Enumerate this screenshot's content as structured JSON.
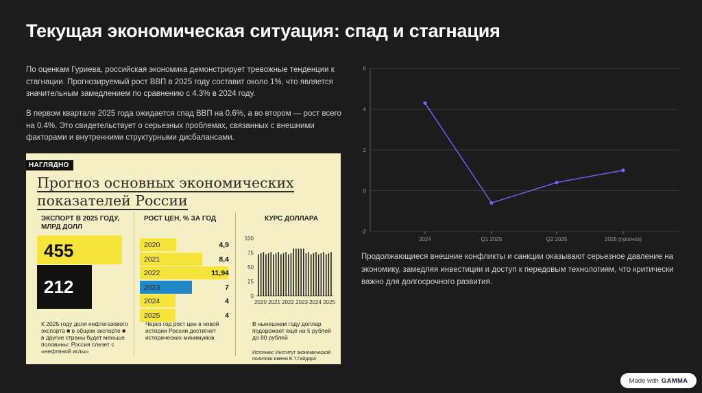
{
  "slide": {
    "title": "Текущая экономическая ситуация: спад и стагнация",
    "paragraph_1": "По оценкам Гуриева, российская экономика демонстрирует тревожные тенденции к стагнации. Прогнозируемый рост ВВП в 2025 году составит около 1%, что является значительным замедлением по сравнению с 4.3% в 2024 году.",
    "paragraph_2": "В первом квартале 2025 года ожидается спад ВВП на 0.6%, а во втором — рост всего на 0.4%. Это свидетельствует о серьезных проблемах, связанных с внешними факторами и внутренними структурными дисбалансами.",
    "paragraph_3": "Продолжающиеся внешние конфликты и санкции оказывают серьезное давление на экономику, замедляя инвестиции и доступ к передовым технологиям, что критически важно для долгосрочного развития."
  },
  "infographic": {
    "badge": "НАГЛЯДНО",
    "heading_line1": "Прогноз основных экономических",
    "heading_line2": "показателей России",
    "export": {
      "header": "ЭКСПОРТ В 2025 ГОДУ, МЛРД ДОЛЛ",
      "total": "455",
      "oil_gas": "212",
      "note": "К 2025 году доля нефтегазового экспорта ■ в общем экспорте ■ в другие страны будет меньше половины: Россия слезет с «нефтяной иглы»"
    },
    "prices": {
      "header": "РОСТ ЦЕН, % ЗА ГОД",
      "rows": [
        {
          "year": "2020",
          "value": "4,9",
          "level": 4.9
        },
        {
          "year": "2021",
          "value": "8,4",
          "level": 8.4
        },
        {
          "year": "2022",
          "value": "11,94",
          "level": 11.94
        },
        {
          "year": "2023",
          "value": "7",
          "level": 7
        },
        {
          "year": "2024",
          "value": "4",
          "level": 4
        },
        {
          "year": "2025",
          "value": "4",
          "level": 4
        }
      ],
      "note": "Через год рост цен в новой истории России достигнет исторических минимумов"
    },
    "dollar": {
      "header": "КУРС ДОЛЛАРА",
      "y_ticks": [
        "100",
        "75",
        "50",
        "25",
        "0"
      ],
      "x_ticks": [
        "2020",
        "2021",
        "2022",
        "2023",
        "2024",
        "2025"
      ],
      "note": "В нынешнем году доллар подорожает ещё на 5 рублей до 80 рублей",
      "source": "Источник: Институт экономической политики имени Е.Т.Гайдара"
    }
  },
  "chart_data": {
    "type": "line",
    "categories": [
      "2024",
      "Q1 2025",
      "Q2 2025",
      "2025 (прогноз)"
    ],
    "series": [
      {
        "values": [
          4.3,
          -0.6,
          0.4,
          1.0
        ],
        "color": "#7b61ff"
      }
    ],
    "ylim": [
      -2,
      6
    ],
    "y_ticks": [
      "6",
      "4",
      "2",
      "0",
      "-2"
    ],
    "grid": true,
    "legend": "none"
  },
  "footer": {
    "made_with": "Made with",
    "brand": "GAMMA"
  }
}
